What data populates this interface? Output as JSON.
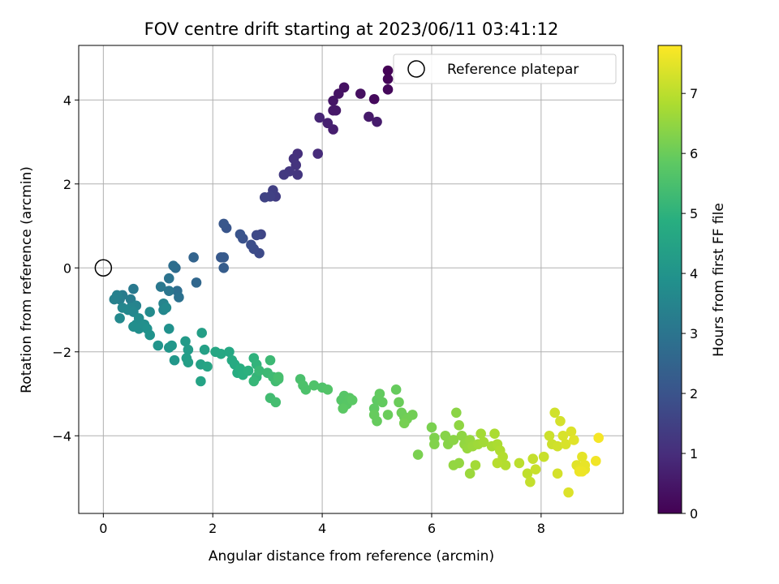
{
  "chart_data": {
    "type": "scatter",
    "title": "FOV centre drift starting at 2023/06/11 03:41:12",
    "xlabel": "Angular distance from reference (arcmin)",
    "ylabel": "Rotation from reference (arcmin)",
    "xlim": [
      -0.45,
      9.5
    ],
    "ylim": [
      -5.85,
      5.3
    ],
    "xticks": [
      0,
      2,
      4,
      6,
      8
    ],
    "yticks": [
      -4,
      -2,
      0,
      2,
      4
    ],
    "grid": true,
    "legend": {
      "position": "top-right",
      "entries": [
        "Reference platepar"
      ]
    },
    "colorbar": {
      "label": "Hours from first FF file",
      "range": [
        0,
        7.8
      ],
      "ticks": [
        0,
        1,
        2,
        3,
        4,
        5,
        6,
        7
      ],
      "colormap": "viridis"
    },
    "reference_point": {
      "x": 0,
      "y": 0
    },
    "series": [
      {
        "values": [
          [
            5.2,
            4.7,
            0.05
          ],
          [
            5.2,
            4.5,
            0.1
          ],
          [
            5.2,
            4.25,
            0.15
          ],
          [
            4.95,
            4.02,
            0.2
          ],
          [
            4.7,
            4.15,
            0.3
          ],
          [
            4.4,
            4.3,
            0.35
          ],
          [
            4.3,
            4.15,
            0.4
          ],
          [
            4.2,
            3.98,
            0.45
          ],
          [
            4.2,
            3.75,
            0.5
          ],
          [
            4.25,
            3.75,
            0.5
          ],
          [
            4.85,
            3.6,
            0.55
          ],
          [
            5.0,
            3.48,
            0.6
          ],
          [
            4.2,
            3.3,
            0.65
          ],
          [
            4.1,
            3.45,
            0.7
          ],
          [
            3.95,
            3.58,
            0.8
          ],
          [
            3.92,
            2.72,
            0.95
          ],
          [
            3.55,
            2.72,
            1.05
          ],
          [
            3.48,
            2.6,
            1.1
          ],
          [
            3.52,
            2.45,
            1.15
          ],
          [
            3.55,
            2.22,
            1.2
          ],
          [
            3.4,
            2.3,
            1.25
          ],
          [
            3.3,
            2.22,
            1.3
          ],
          [
            3.15,
            1.7,
            1.4
          ],
          [
            3.1,
            1.85,
            1.45
          ],
          [
            3.05,
            1.7,
            1.5
          ],
          [
            2.95,
            1.68,
            1.55
          ],
          [
            2.88,
            0.8,
            1.6
          ],
          [
            2.8,
            0.78,
            1.7
          ],
          [
            2.85,
            0.35,
            1.75
          ],
          [
            2.75,
            0.45,
            1.8
          ],
          [
            2.7,
            0.55,
            1.85
          ],
          [
            2.55,
            0.7,
            1.95
          ],
          [
            2.5,
            0.8,
            2.0
          ],
          [
            2.25,
            0.95,
            2.05
          ],
          [
            2.2,
            1.05,
            2.1
          ],
          [
            2.15,
            0.25,
            2.15
          ],
          [
            2.2,
            0.25,
            2.2
          ],
          [
            2.2,
            0.0,
            2.3
          ],
          [
            1.65,
            0.25,
            2.5
          ],
          [
            1.7,
            -0.35,
            2.6
          ],
          [
            1.32,
            0.0,
            2.7
          ],
          [
            1.28,
            0.05,
            2.8
          ],
          [
            1.35,
            -0.55,
            2.8
          ],
          [
            1.38,
            -0.7,
            2.9
          ],
          [
            1.2,
            -0.25,
            2.95
          ],
          [
            1.2,
            -0.55,
            3.05
          ],
          [
            1.05,
            -0.45,
            3.1
          ],
          [
            0.55,
            -0.5,
            3.15
          ],
          [
            0.35,
            -0.65,
            3.2
          ],
          [
            0.5,
            -0.75,
            3.25
          ],
          [
            0.3,
            -0.75,
            3.3
          ],
          [
            0.25,
            -0.65,
            3.35
          ],
          [
            0.2,
            -0.75,
            3.4
          ],
          [
            0.6,
            -0.9,
            3.45
          ],
          [
            0.5,
            -0.95,
            3.5
          ],
          [
            0.35,
            -0.95,
            3.55
          ],
          [
            0.45,
            -1.0,
            3.6
          ],
          [
            0.55,
            -1.05,
            3.6
          ],
          [
            0.3,
            -1.2,
            3.65
          ],
          [
            1.1,
            -0.85,
            3.5
          ],
          [
            1.1,
            -1.0,
            3.6
          ],
          [
            1.15,
            -0.95,
            3.65
          ],
          [
            0.85,
            -1.05,
            3.7
          ],
          [
            0.65,
            -1.2,
            3.75
          ],
          [
            0.6,
            -1.35,
            3.75
          ],
          [
            0.55,
            -1.4,
            3.8
          ],
          [
            0.65,
            -1.45,
            3.8
          ],
          [
            0.75,
            -1.35,
            3.85
          ],
          [
            0.8,
            -1.45,
            3.9
          ],
          [
            0.85,
            -1.6,
            3.95
          ],
          [
            1.2,
            -1.45,
            3.9
          ],
          [
            1.0,
            -1.85,
            4.0
          ],
          [
            1.2,
            -1.9,
            4.05
          ],
          [
            1.25,
            -1.85,
            4.1
          ],
          [
            1.3,
            -2.2,
            4.1
          ],
          [
            1.5,
            -1.75,
            4.2
          ],
          [
            1.55,
            -1.95,
            4.25
          ],
          [
            1.52,
            -2.15,
            4.3
          ],
          [
            1.55,
            -2.25,
            4.35
          ],
          [
            1.8,
            -1.55,
            4.35
          ],
          [
            1.85,
            -1.95,
            4.4
          ],
          [
            1.78,
            -2.3,
            4.45
          ],
          [
            1.78,
            -2.7,
            4.5
          ],
          [
            1.9,
            -2.35,
            4.55
          ],
          [
            2.05,
            -2.0,
            4.6
          ],
          [
            2.15,
            -2.05,
            4.65
          ],
          [
            2.3,
            -2.0,
            4.65
          ],
          [
            2.35,
            -2.2,
            4.7
          ],
          [
            2.4,
            -2.3,
            4.75
          ],
          [
            2.45,
            -2.5,
            4.8
          ],
          [
            2.5,
            -2.4,
            4.85
          ],
          [
            2.55,
            -2.55,
            4.9
          ],
          [
            2.65,
            -2.45,
            4.95
          ],
          [
            2.75,
            -2.15,
            5.0
          ],
          [
            2.8,
            -2.3,
            5.05
          ],
          [
            2.8,
            -2.6,
            5.1
          ],
          [
            2.75,
            -2.7,
            5.15
          ],
          [
            2.85,
            -2.45,
            5.2
          ],
          [
            3.0,
            -2.5,
            5.25
          ],
          [
            3.05,
            -2.2,
            5.25
          ],
          [
            3.1,
            -2.6,
            5.3
          ],
          [
            3.15,
            -2.7,
            5.35
          ],
          [
            3.2,
            -2.65,
            5.4
          ],
          [
            3.2,
            -2.6,
            5.45
          ],
          [
            3.05,
            -3.1,
            5.35
          ],
          [
            3.15,
            -3.2,
            5.4
          ],
          [
            3.6,
            -2.65,
            5.5
          ],
          [
            3.65,
            -2.8,
            5.55
          ],
          [
            3.7,
            -2.9,
            5.55
          ],
          [
            3.85,
            -2.8,
            5.6
          ],
          [
            4.0,
            -2.85,
            5.6
          ],
          [
            4.1,
            -2.9,
            5.65
          ],
          [
            4.35,
            -3.15,
            5.7
          ],
          [
            4.4,
            -3.05,
            5.7
          ],
          [
            4.45,
            -3.25,
            5.75
          ],
          [
            4.5,
            -3.1,
            5.75
          ],
          [
            4.38,
            -3.35,
            5.8
          ],
          [
            4.55,
            -3.15,
            5.8
          ],
          [
            4.95,
            -3.35,
            5.85
          ],
          [
            5.0,
            -3.15,
            5.85
          ],
          [
            5.05,
            -3.0,
            5.9
          ],
          [
            5.1,
            -3.2,
            5.9
          ],
          [
            4.95,
            -3.5,
            5.95
          ],
          [
            5.0,
            -3.65,
            5.95
          ],
          [
            5.2,
            -3.5,
            6.0
          ],
          [
            5.35,
            -2.9,
            5.95
          ],
          [
            5.4,
            -3.2,
            6.0
          ],
          [
            5.45,
            -3.45,
            6.05
          ],
          [
            5.5,
            -3.55,
            6.05
          ],
          [
            5.55,
            -3.6,
            6.1
          ],
          [
            5.65,
            -3.5,
            6.1
          ],
          [
            5.5,
            -3.7,
            6.15
          ],
          [
            5.75,
            -4.45,
            6.2
          ],
          [
            6.0,
            -3.8,
            6.2
          ],
          [
            6.05,
            -4.05,
            6.25
          ],
          [
            6.05,
            -4.2,
            6.3
          ],
          [
            6.25,
            -4.0,
            6.35
          ],
          [
            6.3,
            -4.2,
            6.35
          ],
          [
            6.4,
            -4.1,
            6.4
          ],
          [
            6.45,
            -3.45,
            6.4
          ],
          [
            6.5,
            -3.75,
            6.45
          ],
          [
            6.55,
            -4.0,
            6.45
          ],
          [
            6.6,
            -4.2,
            6.5
          ],
          [
            6.4,
            -4.7,
            6.5
          ],
          [
            6.5,
            -4.65,
            6.5
          ],
          [
            6.65,
            -4.3,
            6.55
          ],
          [
            6.7,
            -4.1,
            6.55
          ],
          [
            6.75,
            -4.25,
            6.6
          ],
          [
            6.7,
            -4.9,
            6.6
          ],
          [
            6.85,
            -4.2,
            6.65
          ],
          [
            6.9,
            -3.95,
            6.7
          ],
          [
            6.95,
            -4.15,
            6.7
          ],
          [
            6.8,
            -4.7,
            6.7
          ],
          [
            7.1,
            -4.25,
            6.75
          ],
          [
            7.15,
            -3.95,
            6.8
          ],
          [
            7.2,
            -4.2,
            6.8
          ],
          [
            7.25,
            -4.35,
            6.85
          ],
          [
            7.3,
            -4.5,
            6.9
          ],
          [
            7.35,
            -4.7,
            6.9
          ],
          [
            7.2,
            -4.65,
            6.95
          ],
          [
            7.6,
            -4.65,
            7.0
          ],
          [
            7.75,
            -4.9,
            7.05
          ],
          [
            7.8,
            -5.1,
            7.1
          ],
          [
            7.85,
            -4.55,
            7.1
          ],
          [
            7.9,
            -4.8,
            7.15
          ],
          [
            8.05,
            -4.5,
            7.15
          ],
          [
            8.15,
            -4.0,
            7.2
          ],
          [
            8.2,
            -4.2,
            7.2
          ],
          [
            8.25,
            -3.45,
            7.25
          ],
          [
            8.3,
            -4.25,
            7.25
          ],
          [
            8.3,
            -4.9,
            7.3
          ],
          [
            8.35,
            -3.65,
            7.3
          ],
          [
            8.4,
            -4.0,
            7.35
          ],
          [
            8.45,
            -4.2,
            7.35
          ],
          [
            8.5,
            -5.35,
            7.4
          ],
          [
            8.55,
            -3.9,
            7.4
          ],
          [
            8.6,
            -4.1,
            7.45
          ],
          [
            8.65,
            -4.7,
            7.45
          ],
          [
            8.7,
            -4.8,
            7.5
          ],
          [
            8.75,
            -4.5,
            7.5
          ],
          [
            8.8,
            -4.7,
            7.55
          ],
          [
            8.8,
            -4.8,
            7.55
          ],
          [
            8.75,
            -4.85,
            7.6
          ],
          [
            8.7,
            -4.85,
            7.6
          ],
          [
            9.0,
            -4.6,
            7.65
          ],
          [
            9.05,
            -4.05,
            7.7
          ]
        ]
      }
    ]
  }
}
